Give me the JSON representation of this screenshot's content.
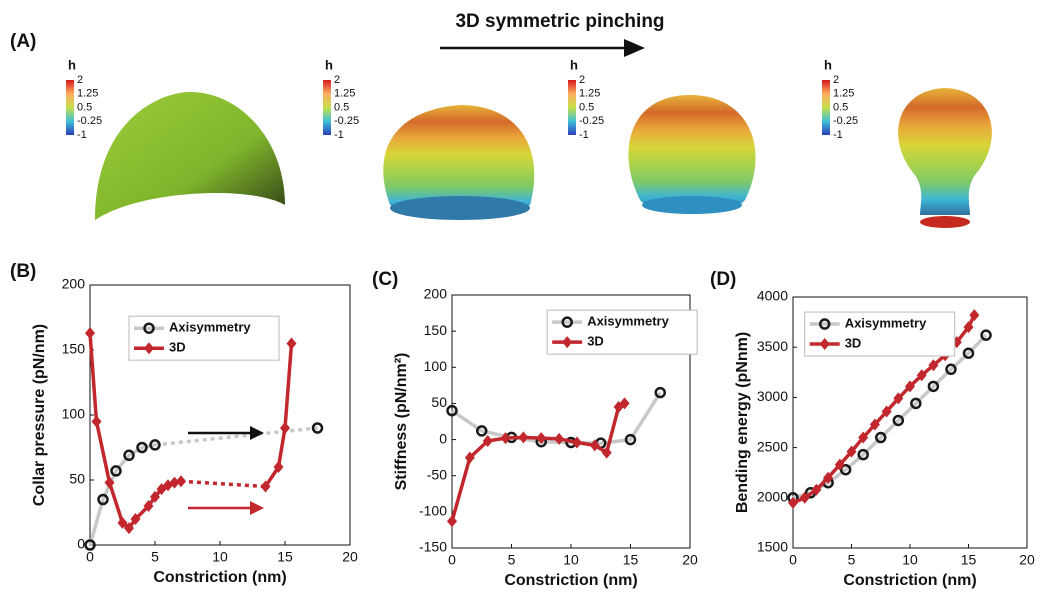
{
  "figure": {
    "panel_labels": [
      "(A)",
      "(B)",
      "(C)",
      "(D)"
    ],
    "title": "3D symmetric pinching",
    "colorbar": {
      "label": "h",
      "ticks": [
        "2",
        "1.25",
        "0.5",
        "-0.25",
        "-1"
      ]
    }
  },
  "chart_data": [
    {
      "type": "line",
      "xlabel": "Constriction (nm)",
      "ylabel": "Collar pressure (pN/nm)",
      "xlim": [
        0,
        20
      ],
      "xticks": [
        0,
        5,
        10,
        15,
        20
      ],
      "ylim": [
        0,
        200
      ],
      "yticks": [
        0,
        50,
        100,
        150,
        200
      ],
      "legend": "upper center",
      "series": [
        {
          "name": "Axisymmetry",
          "color": "#c8c8c8",
          "marker": "circle",
          "marker_color": "#1a1a1a",
          "x": [
            0,
            1,
            2,
            3,
            4,
            5,
            17.5
          ],
          "values": [
            0,
            35,
            57,
            69,
            75,
            77,
            90
          ]
        },
        {
          "name": "3D",
          "color": "#c1272d",
          "marker": "diamond",
          "marker_color": "#c1272d",
          "x": [
            0,
            0.5,
            1.5,
            2.5,
            3,
            3.5,
            4.5,
            5,
            5.5,
            6,
            6.5,
            7,
            13.5,
            14.5,
            15,
            15.5
          ],
          "values": [
            163,
            95,
            48,
            17,
            13,
            20,
            30,
            37,
            43,
            46,
            48,
            49,
            45,
            60,
            90,
            155
          ]
        }
      ]
    },
    {
      "type": "line",
      "xlabel": "Constriction (nm)",
      "ylabel": "Stiffness (pN/nm²)",
      "xlim": [
        0,
        20
      ],
      "xticks": [
        0,
        5,
        10,
        15,
        20
      ],
      "ylim": [
        -150,
        200
      ],
      "yticks": [
        -150,
        -100,
        -50,
        0,
        50,
        100,
        150,
        200
      ],
      "legend": "upper right",
      "series": [
        {
          "name": "Axisymmetry",
          "color": "#c8c8c8",
          "marker": "circle",
          "marker_color": "#1a1a1a",
          "x": [
            0,
            2.5,
            5,
            7.5,
            10,
            12.5,
            15,
            17.5
          ],
          "values": [
            40,
            12,
            3,
            -3,
            -4,
            -5,
            0,
            65
          ]
        },
        {
          "name": "3D",
          "color": "#c1272d",
          "marker": "diamond",
          "marker_color": "#c1272d",
          "x": [
            0,
            1.5,
            3,
            4.5,
            6,
            7.5,
            9,
            10.5,
            12,
            13,
            14,
            14.5
          ],
          "values": [
            -113,
            -25,
            -2,
            2,
            3,
            2,
            1,
            -4,
            -8,
            -18,
            45,
            50
          ]
        }
      ]
    },
    {
      "type": "line",
      "xlabel": "Constriction (nm)",
      "ylabel": "Bending energy (pNnm)",
      "xlim": [
        0,
        20
      ],
      "xticks": [
        0,
        5,
        10,
        15,
        20
      ],
      "ylim": [
        1500,
        4000
      ],
      "yticks": [
        1500,
        2000,
        2500,
        3000,
        3500,
        4000
      ],
      "legend": "upper left",
      "series": [
        {
          "name": "Axisymmetry",
          "color": "#c8c8c8",
          "marker": "circle",
          "marker_color": "#1a1a1a",
          "x": [
            0,
            1.5,
            3,
            4.5,
            6,
            7.5,
            9,
            10.5,
            12,
            13.5,
            15,
            16.5
          ],
          "values": [
            2000,
            2050,
            2150,
            2280,
            2430,
            2600,
            2770,
            2940,
            3110,
            3280,
            3440,
            3620
          ]
        },
        {
          "name": "3D",
          "color": "#c1272d",
          "marker": "diamond",
          "marker_color": "#c1272d",
          "x": [
            0,
            1,
            2,
            3,
            4,
            5,
            6,
            7,
            8,
            9,
            10,
            11,
            12,
            13,
            14,
            15,
            15.5
          ],
          "values": [
            1950,
            2000,
            2080,
            2200,
            2330,
            2460,
            2600,
            2730,
            2860,
            2990,
            3110,
            3220,
            3320,
            3420,
            3550,
            3700,
            3820
          ]
        }
      ]
    }
  ]
}
